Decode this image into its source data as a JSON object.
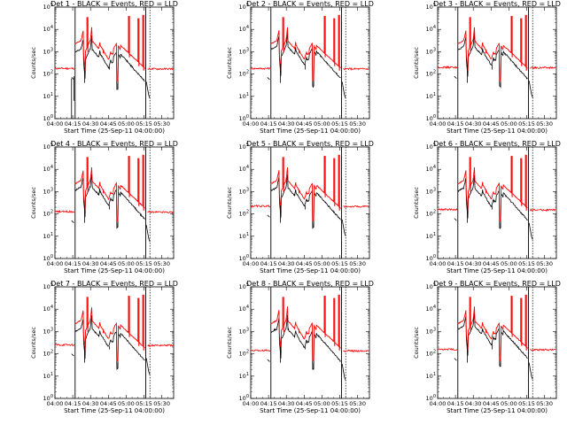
{
  "figure": {
    "x_ticks": [
      "04:00",
      "04:15",
      "04:30",
      "04:45",
      "05:00",
      "05:15",
      "05:30"
    ],
    "y_ticks": [
      "10^0",
      "10^1",
      "10^2",
      "10^3",
      "10^4",
      "10^5"
    ],
    "ylabel": "Counts/sec",
    "xlabel": "Start Time (25-Sep-11 04:00:00)",
    "colors": {
      "events": "#000000",
      "lld": "#ff0000",
      "axes": "#000000"
    }
  },
  "chart_data": [
    {
      "type": "line",
      "title": "Det 1 - BLACK = Events, RED = LLD",
      "ylabel": "Counts/sec",
      "xlabel": "Start Time (25-Sep-11 04:00:00)",
      "x_range": [
        "04:00",
        "05:40"
      ],
      "ylim_log10": [
        0,
        5
      ],
      "y_scale": "log",
      "series": [
        {
          "name": "Events",
          "color": "#000000",
          "level_events_log10": 1.9,
          "gap": [
            true
          ]
        },
        {
          "name": "LLD",
          "color": "#ff0000",
          "level_lld_log10": 2.25
        }
      ],
      "markers": {
        "solid_vertical": [
          "04:17",
          "05:16"
        ],
        "dotted_vertical": [
          "05:20"
        ]
      }
    },
    {
      "type": "line",
      "title": "Det 2 - BLACK = Events, RED = LLD",
      "ylabel": "Counts/sec",
      "xlabel": "Start Time (25-Sep-11 04:00:00)",
      "x_range": [
        "04:00",
        "05:40"
      ],
      "ylim_log10": [
        0,
        5
      ],
      "y_scale": "log",
      "series": [
        {
          "name": "Events",
          "color": "#000000"
        },
        {
          "name": "LLD",
          "color": "#ff0000",
          "level_lld_log10": 2.25
        }
      ],
      "markers": {
        "solid_vertical": [
          "04:17",
          "05:16"
        ],
        "dotted_vertical": [
          "05:20"
        ]
      }
    },
    {
      "type": "line",
      "title": "Det 3 - BLACK = Events, RED = LLD",
      "ylabel": "Counts/sec",
      "xlabel": "Start Time (25-Sep-11 04:00:00)",
      "x_range": [
        "04:00",
        "05:40"
      ],
      "ylim_log10": [
        0,
        5
      ],
      "y_scale": "log",
      "series": [
        {
          "name": "Events",
          "color": "#000000"
        },
        {
          "name": "LLD",
          "color": "#ff0000",
          "level_lld_log10": 2.3
        }
      ],
      "markers": {
        "solid_vertical": [
          "04:17",
          "05:16"
        ],
        "dotted_vertical": [
          "05:20"
        ]
      }
    },
    {
      "type": "line",
      "title": "Det 4 - BLACK = Events, RED = LLD",
      "ylabel": "Counts/sec",
      "xlabel": "Start Time (25-Sep-11 04:00:00)",
      "x_range": [
        "04:00",
        "05:40"
      ],
      "ylim_log10": [
        0,
        5
      ],
      "y_scale": "log",
      "series": [
        {
          "name": "Events",
          "color": "#000000"
        },
        {
          "name": "LLD",
          "color": "#ff0000",
          "level_lld_log10": 2.1
        }
      ],
      "markers": {
        "solid_vertical": [
          "04:17",
          "05:16"
        ],
        "dotted_vertical": [
          "05:20"
        ]
      }
    },
    {
      "type": "line",
      "title": "Det 5 - BLACK = Events, RED = LLD",
      "ylabel": "Counts/sec",
      "xlabel": "Start Time (25-Sep-11 04:00:00)",
      "x_range": [
        "04:00",
        "05:40"
      ],
      "ylim_log10": [
        0,
        5
      ],
      "y_scale": "log",
      "series": [
        {
          "name": "Events",
          "color": "#000000"
        },
        {
          "name": "LLD",
          "color": "#ff0000",
          "level_lld_log10": 2.35
        }
      ],
      "markers": {
        "solid_vertical": [
          "04:17",
          "05:16"
        ],
        "dotted_vertical": [
          "05:20"
        ]
      }
    },
    {
      "type": "line",
      "title": "Det 6 - BLACK = Events, RED = LLD",
      "ylabel": "Counts/sec",
      "xlabel": "Start Time (25-Sep-11 04:00:00)",
      "x_range": [
        "04:00",
        "05:40"
      ],
      "ylim_log10": [
        0,
        5
      ],
      "y_scale": "log",
      "series": [
        {
          "name": "Events",
          "color": "#000000"
        },
        {
          "name": "LLD",
          "color": "#ff0000",
          "level_lld_log10": 2.2
        }
      ],
      "markers": {
        "solid_vertical": [
          "04:17",
          "05:16"
        ],
        "dotted_vertical": [
          "05:20"
        ]
      }
    },
    {
      "type": "line",
      "title": "Det 7 - BLACK = Events, RED = LLD",
      "ylabel": "Counts/sec",
      "xlabel": "Start Time (25-Sep-11 04:00:00)",
      "x_range": [
        "04:00",
        "05:40"
      ],
      "ylim_log10": [
        0,
        5
      ],
      "y_scale": "log",
      "series": [
        {
          "name": "Events",
          "color": "#000000"
        },
        {
          "name": "LLD",
          "color": "#ff0000",
          "level_lld_log10": 2.4
        }
      ],
      "markers": {
        "solid_vertical": [
          "04:17",
          "05:16"
        ],
        "dotted_vertical": [
          "05:20"
        ]
      }
    },
    {
      "type": "line",
      "title": "Det 8 - BLACK = Events, RED = LLD",
      "ylabel": "Counts/sec",
      "xlabel": "Start Time (25-Sep-11 04:00:00)",
      "x_range": [
        "04:00",
        "05:40"
      ],
      "ylim_log10": [
        0,
        5
      ],
      "y_scale": "log",
      "series": [
        {
          "name": "Events",
          "color": "#000000"
        },
        {
          "name": "LLD",
          "color": "#ff0000",
          "level_lld_log10": 2.15
        }
      ],
      "markers": {
        "solid_vertical": [
          "04:17",
          "05:16"
        ],
        "dotted_vertical": [
          "05:20"
        ]
      }
    },
    {
      "type": "line",
      "title": "Det 9 - BLACK = Events, RED = LLD",
      "ylabel": "Counts/sec",
      "xlabel": "Start Time (25-Sep-11 04:00:00)",
      "x_range": [
        "04:00",
        "05:40"
      ],
      "ylim_log10": [
        0,
        5
      ],
      "y_scale": "log",
      "series": [
        {
          "name": "Events",
          "color": "#000000"
        },
        {
          "name": "LLD",
          "color": "#ff0000",
          "level_lld_log10": 2.2
        }
      ],
      "markers": {
        "solid_vertical": [
          "04:17",
          "05:16"
        ],
        "dotted_vertical": [
          "05:20"
        ]
      }
    }
  ]
}
